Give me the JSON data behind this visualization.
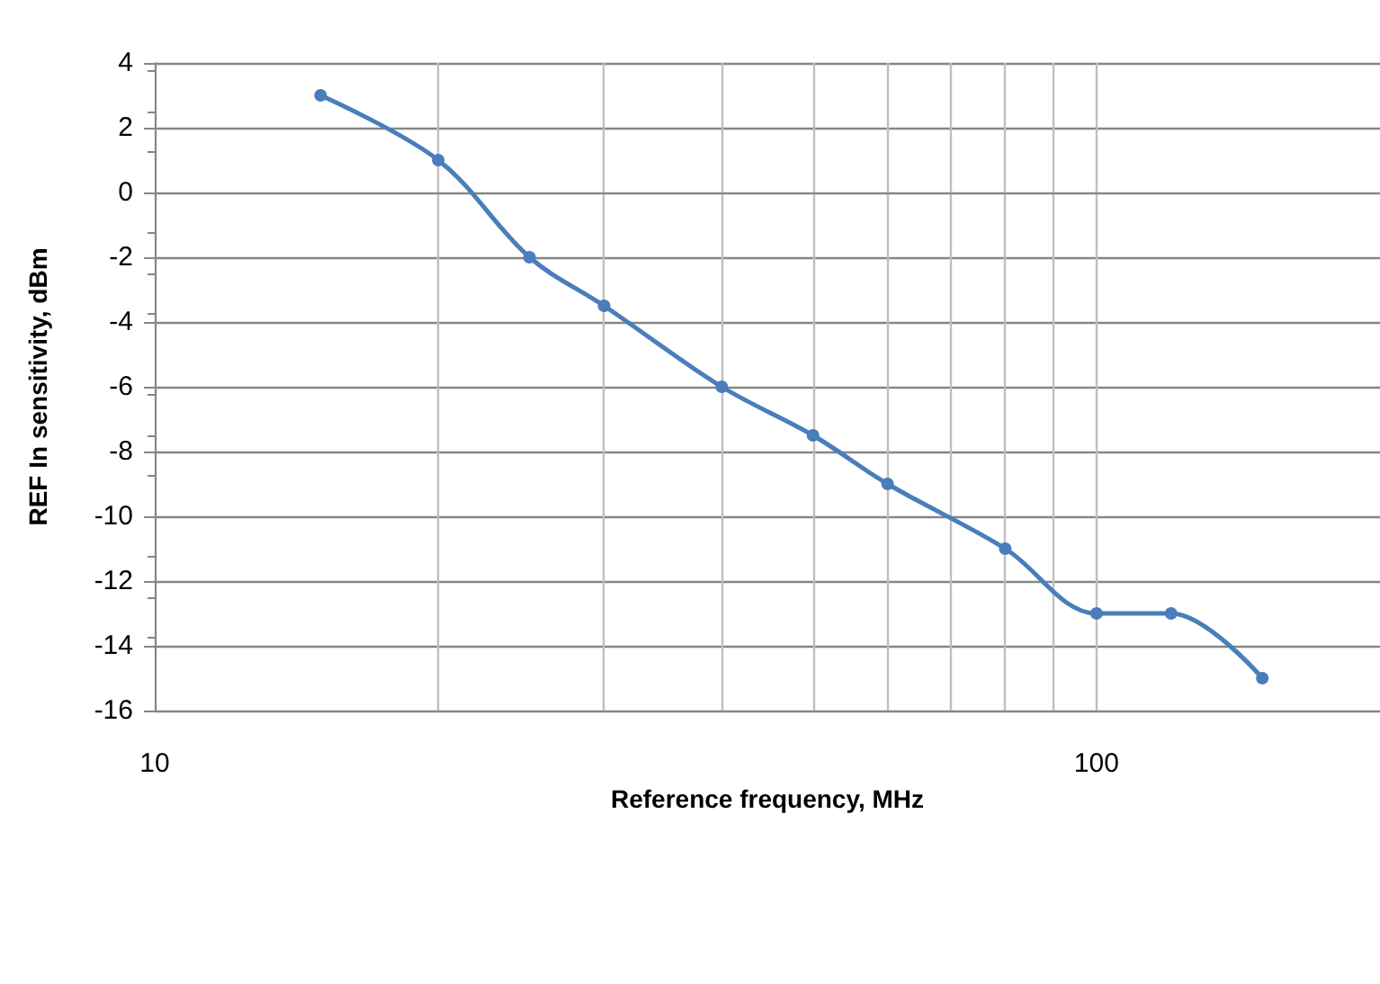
{
  "chart_data": {
    "type": "line",
    "xlabel": "Reference frequency, MHz",
    "ylabel": "REF In sensitivity, dBm",
    "x": [
      15,
      20,
      25,
      30,
      40,
      50,
      60,
      80,
      100,
      120,
      150
    ],
    "series": [
      {
        "color": "#4a7ebb",
        "values": [
          3,
          1,
          -2,
          -3.5,
          -6,
          -7.5,
          -9,
          -11,
          -13,
          -13,
          -15
        ]
      }
    ],
    "log": "x",
    "xlim": [
      10,
      200
    ],
    "xticks": [
      10,
      {
        "value": 20,
        "label": null
      },
      {
        "value": 30,
        "label": null
      },
      {
        "value": 40,
        "label": null
      },
      {
        "value": 50,
        "label": null
      },
      {
        "value": 60,
        "label": null
      },
      {
        "value": 70,
        "label": null
      },
      {
        "value": 80,
        "label": null
      },
      {
        "value": 90,
        "label": null
      },
      100
    ],
    "ylim": [
      -16,
      4
    ],
    "yticks": [
      -16,
      -14,
      -12,
      -10,
      -8,
      -6,
      -4,
      -2,
      0,
      2,
      4
    ],
    "grid": true,
    "marker": "circle"
  }
}
